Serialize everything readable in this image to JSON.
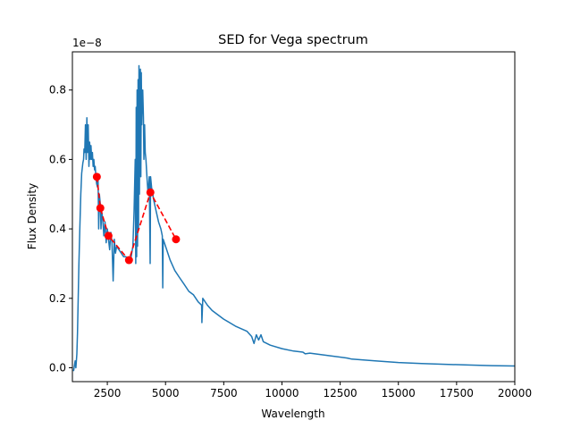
{
  "chart_data": {
    "type": "line",
    "title": "SED for Vega spectrum",
    "xlabel": "Wavelength",
    "ylabel": "Flux Density",
    "y_offset_label": "1e−8",
    "xlim": [
      1000,
      20000
    ],
    "ylim": [
      -0.04,
      0.91
    ],
    "xticks": [
      2500,
      5000,
      7500,
      10000,
      12500,
      15000,
      17500,
      20000
    ],
    "xtick_labels": [
      "2500",
      "5000",
      "7500",
      "10000",
      "12500",
      "15000",
      "17500",
      "20000"
    ],
    "yticks": [
      0.0,
      0.2,
      0.4,
      0.6,
      0.8
    ],
    "ytick_labels": [
      "0.0",
      "0.2",
      "0.4",
      "0.6",
      "0.8"
    ],
    "grid": false,
    "series": [
      {
        "style": "solid",
        "color": "#1f77b4",
        "x": [
          1050,
          1120,
          1150,
          1190,
          1220,
          1250,
          1280,
          1320,
          1360,
          1400,
          1450,
          1480,
          1500,
          1530,
          1560,
          1590,
          1620,
          1650,
          1680,
          1710,
          1740,
          1770,
          1800,
          1830,
          1860,
          1890,
          1920,
          1950,
          1980,
          2010,
          2040,
          2080,
          2100,
          2130,
          2160,
          2200,
          2230,
          2260,
          2300,
          2350,
          2400,
          2450,
          2500,
          2550,
          2600,
          2650,
          2700,
          2750,
          2800,
          2850,
          2900,
          3000,
          3100,
          3200,
          3300,
          3400,
          3500,
          3600,
          3650,
          3700,
          3720,
          3740,
          3760,
          3780,
          3800,
          3820,
          3840,
          3860,
          3880,
          3900,
          3920,
          3940,
          3960,
          3980,
          4000,
          4020,
          4050,
          4070,
          4100,
          4130,
          4160,
          4200,
          4250,
          4300,
          4340,
          4360,
          4400,
          4500,
          4600,
          4700,
          4800,
          4860,
          4880,
          4900,
          5000,
          5200,
          5400,
          5600,
          5800,
          6000,
          6200,
          6400,
          6550,
          6563,
          6600,
          6800,
          7000,
          7500,
          8000,
          8500,
          8700,
          8800,
          8900,
          9000,
          9100,
          9200,
          9500,
          10000,
          10500,
          10900,
          11000,
          11200,
          12000,
          12800,
          13000,
          14000,
          15000,
          16000,
          17000,
          18000,
          19000,
          20000
        ],
        "y": [
          -0.01,
          0.02,
          0.0,
          0.04,
          0.1,
          0.2,
          0.3,
          0.4,
          0.5,
          0.56,
          0.59,
          0.6,
          0.63,
          0.62,
          0.7,
          0.6,
          0.72,
          0.62,
          0.7,
          0.58,
          0.65,
          0.6,
          0.64,
          0.6,
          0.62,
          0.58,
          0.6,
          0.57,
          0.58,
          0.55,
          0.53,
          0.52,
          0.55,
          0.4,
          0.5,
          0.47,
          0.4,
          0.45,
          0.43,
          0.38,
          0.42,
          0.36,
          0.4,
          0.37,
          0.34,
          0.39,
          0.36,
          0.25,
          0.37,
          0.33,
          0.35,
          0.34,
          0.33,
          0.32,
          0.32,
          0.31,
          0.31,
          0.35,
          0.45,
          0.6,
          0.3,
          0.75,
          0.32,
          0.8,
          0.35,
          0.83,
          0.4,
          0.87,
          0.5,
          0.78,
          0.86,
          0.55,
          0.85,
          0.7,
          0.78,
          0.8,
          0.72,
          0.6,
          0.7,
          0.62,
          0.6,
          0.55,
          0.5,
          0.55,
          0.3,
          0.55,
          0.52,
          0.48,
          0.45,
          0.42,
          0.4,
          0.38,
          0.23,
          0.37,
          0.35,
          0.31,
          0.28,
          0.26,
          0.24,
          0.22,
          0.21,
          0.19,
          0.18,
          0.13,
          0.2,
          0.18,
          0.165,
          0.14,
          0.12,
          0.105,
          0.09,
          0.07,
          0.095,
          0.08,
          0.095,
          0.075,
          0.065,
          0.055,
          0.048,
          0.045,
          0.04,
          0.042,
          0.035,
          0.028,
          0.025,
          0.02,
          0.015,
          0.012,
          0.01,
          0.008,
          0.006,
          0.005
        ]
      },
      {
        "style": "dashed",
        "color": "#ff0000",
        "marker": "circle",
        "x": [
          2050,
          2200,
          2550,
          3430,
          4350,
          5450
        ],
        "y": [
          0.55,
          0.46,
          0.38,
          0.31,
          0.505,
          0.37
        ]
      }
    ]
  }
}
